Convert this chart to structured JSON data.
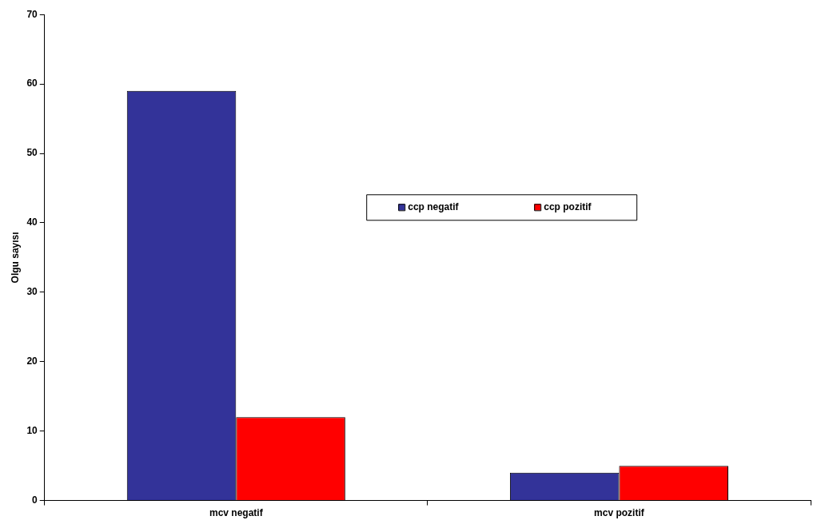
{
  "chart_data": {
    "type": "bar",
    "ylabel": "Olgu sayısı",
    "categories": [
      "mcv negatif",
      "mcv pozitif"
    ],
    "series": [
      {
        "name": "ccp negatif",
        "color": "#333399",
        "values": [
          59,
          4
        ]
      },
      {
        "name": "ccp pozitif",
        "color": "#ff0000",
        "values": [
          12,
          5
        ]
      }
    ],
    "ylim": [
      0,
      70
    ],
    "yticks": [
      0,
      10,
      20,
      30,
      40,
      50,
      60,
      70
    ],
    "grid": false,
    "legend": "right"
  }
}
